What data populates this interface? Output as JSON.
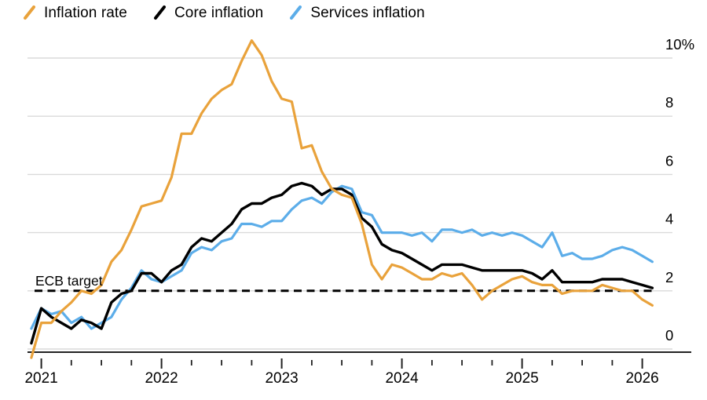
{
  "legend": {
    "items": [
      {
        "label": "Inflation rate"
      },
      {
        "label": "Core inflation"
      },
      {
        "label": "Services inflation"
      }
    ]
  },
  "annotation": {
    "ecb_target_label": "ECB target"
  },
  "colors": {
    "inflation_rate": "#E9A23B",
    "core_inflation": "#000000",
    "services_inflation": "#5CADE9",
    "gridline": "#DADADA",
    "axis": "#222222",
    "background": "#FFFFFF"
  },
  "chart_data": {
    "type": "line",
    "title": "",
    "xlabel": "",
    "ylabel": "",
    "x_unit": "month",
    "x_start": "2020-12",
    "x_end": "2026-02",
    "ylim": [
      -0.5,
      10.8
    ],
    "grid": "horizontal",
    "legend_position": "top-left",
    "yticks": [
      0,
      2,
      4,
      6,
      8,
      10
    ],
    "ytick_labels": [
      "0",
      "2",
      "4",
      "6",
      "8",
      "10%"
    ],
    "year_ticks": [
      "2021",
      "2022",
      "2023",
      "2024",
      "2025",
      "2026"
    ],
    "target_line": {
      "label": "ECB target",
      "value": 2,
      "style": "dashed",
      "color": "#000000"
    },
    "series": [
      {
        "name": "Inflation rate",
        "color": "#E9A23B",
        "values": [
          -0.3,
          0.9,
          0.9,
          1.3,
          1.6,
          2.0,
          1.9,
          2.2,
          3.0,
          3.4,
          4.1,
          4.9,
          5.0,
          5.1,
          5.9,
          7.4,
          7.4,
          8.1,
          8.6,
          8.9,
          9.1,
          9.9,
          10.6,
          10.1,
          9.2,
          8.6,
          8.5,
          6.9,
          7.0,
          6.1,
          5.5,
          5.3,
          5.2,
          4.3,
          2.9,
          2.4,
          2.9,
          2.8,
          2.6,
          2.4,
          2.4,
          2.6,
          2.5,
          2.6,
          2.2,
          1.7,
          2.0,
          2.2,
          2.4,
          2.5,
          2.3,
          2.2,
          2.2,
          1.9,
          2.0,
          2.0,
          2.0,
          2.2,
          2.1,
          2.0,
          2.0,
          1.7,
          1.5
        ]
      },
      {
        "name": "Core inflation",
        "color": "#000000",
        "values": [
          0.2,
          1.4,
          1.1,
          0.9,
          0.7,
          1.0,
          0.9,
          0.7,
          1.6,
          1.9,
          2.0,
          2.6,
          2.6,
          2.3,
          2.7,
          2.9,
          3.5,
          3.8,
          3.7,
          4.0,
          4.3,
          4.8,
          5.0,
          5.0,
          5.2,
          5.3,
          5.6,
          5.7,
          5.6,
          5.3,
          5.5,
          5.5,
          5.3,
          4.5,
          4.2,
          3.6,
          3.4,
          3.3,
          3.1,
          2.9,
          2.7,
          2.9,
          2.9,
          2.9,
          2.8,
          2.7,
          2.7,
          2.7,
          2.7,
          2.7,
          2.6,
          2.4,
          2.7,
          2.3,
          2.3,
          2.3,
          2.3,
          2.4,
          2.4,
          2.4,
          2.3,
          2.2,
          2.1
        ]
      },
      {
        "name": "Services inflation",
        "color": "#5CADE9",
        "values": [
          0.7,
          1.4,
          1.2,
          1.3,
          0.9,
          1.1,
          0.7,
          0.9,
          1.1,
          1.7,
          2.1,
          2.7,
          2.4,
          2.3,
          2.5,
          2.7,
          3.3,
          3.5,
          3.4,
          3.7,
          3.8,
          4.3,
          4.3,
          4.2,
          4.4,
          4.4,
          4.8,
          5.1,
          5.2,
          5.0,
          5.4,
          5.6,
          5.5,
          4.7,
          4.6,
          4.0,
          4.0,
          4.0,
          3.9,
          4.0,
          3.7,
          4.1,
          4.1,
          4.0,
          4.1,
          3.9,
          4.0,
          3.9,
          4.0,
          3.9,
          3.7,
          3.5,
          4.0,
          3.2,
          3.3,
          3.1,
          3.1,
          3.2,
          3.4,
          3.5,
          3.4,
          3.2,
          3.0
        ]
      }
    ]
  }
}
